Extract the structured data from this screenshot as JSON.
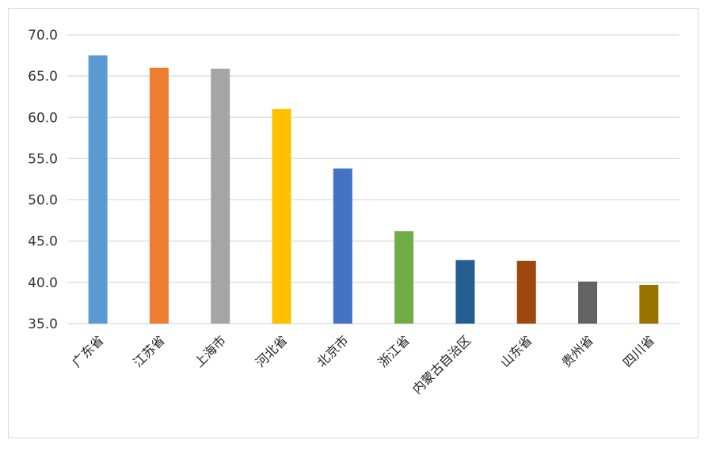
{
  "chart_data": {
    "type": "bar",
    "title": "",
    "xlabel": "",
    "ylabel": "",
    "ylim": [
      35,
      70
    ],
    "yticks": [
      "35.0",
      "40.0",
      "45.0",
      "50.0",
      "55.0",
      "60.0",
      "65.0",
      "70.0"
    ],
    "grid": true,
    "categories": [
      "广东省",
      "江苏省",
      "上海市",
      "河北省",
      "北京市",
      "浙江省",
      "内蒙古自治区",
      "山东省",
      "贵州省",
      "四川省"
    ],
    "values": [
      67.5,
      66.0,
      65.9,
      61.0,
      53.8,
      46.2,
      42.7,
      42.6,
      40.1,
      39.7
    ],
    "colors": [
      "#5b9bd5",
      "#ed7d31",
      "#a5a5a5",
      "#ffc000",
      "#4472c4",
      "#70ad47",
      "#255e91",
      "#9e480e",
      "#636363",
      "#997300"
    ]
  }
}
